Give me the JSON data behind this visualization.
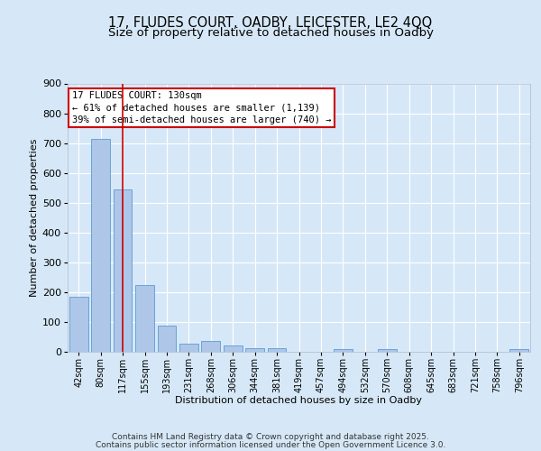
{
  "title_line1": "17, FLUDES COURT, OADBY, LEICESTER, LE2 4QQ",
  "title_line2": "Size of property relative to detached houses in Oadby",
  "xlabel": "Distribution of detached houses by size in Oadby",
  "ylabel": "Number of detached properties",
  "categories": [
    "42sqm",
    "80sqm",
    "117sqm",
    "155sqm",
    "193sqm",
    "231sqm",
    "268sqm",
    "306sqm",
    "344sqm",
    "381sqm",
    "419sqm",
    "457sqm",
    "494sqm",
    "532sqm",
    "570sqm",
    "608sqm",
    "645sqm",
    "683sqm",
    "721sqm",
    "758sqm",
    "796sqm"
  ],
  "values": [
    185,
    715,
    545,
    225,
    88,
    28,
    37,
    22,
    12,
    12,
    0,
    0,
    8,
    0,
    8,
    0,
    0,
    0,
    0,
    0,
    8
  ],
  "bar_color": "#aec6e8",
  "bar_edgecolor": "#5b9bd5",
  "vline_x_index": 2,
  "vline_color": "#cc0000",
  "annotation_text": "17 FLUDES COURT: 130sqm\n← 61% of detached houses are smaller (1,139)\n39% of semi-detached houses are larger (740) →",
  "annotation_box_edgecolor": "#cc0000",
  "annotation_box_facecolor": "#ffffff",
  "annotation_fontsize": 7.5,
  "ylim": [
    0,
    900
  ],
  "yticks": [
    0,
    100,
    200,
    300,
    400,
    500,
    600,
    700,
    800,
    900
  ],
  "background_color": "#d6e8f7",
  "plot_bg_color": "#d6e8f7",
  "grid_color": "#ffffff",
  "title_fontsize": 10.5,
  "subtitle_fontsize": 9.5,
  "footer_line1": "Contains HM Land Registry data © Crown copyright and database right 2025.",
  "footer_line2": "Contains public sector information licensed under the Open Government Licence 3.0.",
  "footer_fontsize": 6.5
}
